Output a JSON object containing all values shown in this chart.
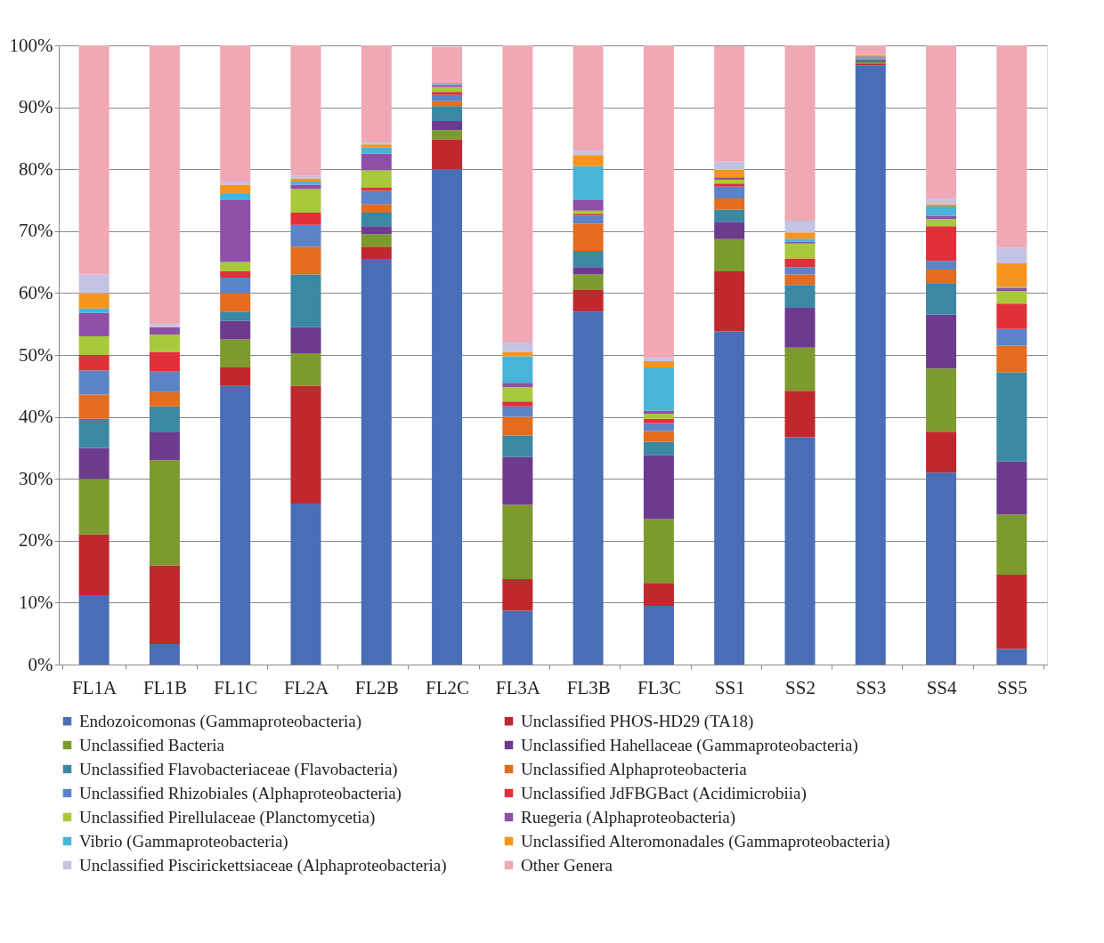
{
  "chart_data": {
    "type": "bar",
    "stacked": true,
    "categories": [
      "FL1A",
      "FL1B",
      "FL1C",
      "FL2A",
      "FL2B",
      "FL2C",
      "FL3A",
      "FL3B",
      "FL3C",
      "SS1",
      "SS2",
      "SS3",
      "SS4",
      "SS5"
    ],
    "ylim": [
      0,
      100
    ],
    "yticks": [
      {
        "value": 0,
        "label": "0%"
      },
      {
        "value": 10,
        "label": "10%"
      },
      {
        "value": 20,
        "label": "20%"
      },
      {
        "value": 30,
        "label": "30%"
      },
      {
        "value": 40,
        "label": "40%"
      },
      {
        "value": 50,
        "label": "50%"
      },
      {
        "value": 60,
        "label": "60%"
      },
      {
        "value": 70,
        "label": "70%"
      },
      {
        "value": 80,
        "label": "80%"
      },
      {
        "value": 90,
        "label": "90%"
      },
      {
        "value": 100,
        "label": "100%"
      }
    ],
    "grid": "y",
    "legend": "bottom",
    "series": [
      {
        "name": "Endozoicomonas (Gammaproteobacteria)",
        "color": "#4a6eb5",
        "values": [
          11.2,
          3.3,
          45,
          26,
          65.5,
          80,
          8.7,
          57,
          9.5,
          53.8,
          36.7,
          96.8,
          31,
          2.5
        ]
      },
      {
        "name": "Unclassified PHOS-HD29 (TA18)",
        "color": "#c0282d",
        "values": [
          9.8,
          12.7,
          3,
          19,
          2,
          4.8,
          5.1,
          3.5,
          3.7,
          9.7,
          7.5,
          0.3,
          6.6,
          12
        ]
      },
      {
        "name": "Unclassified Bacteria",
        "color": "#7d9a2e",
        "values": [
          9,
          17,
          4.5,
          5.3,
          2,
          1.5,
          12,
          2.5,
          10.3,
          5.2,
          7,
          0.2,
          10.2,
          9.7
        ]
      },
      {
        "name": "Unclassified Hahellaceae (Gammaproteobacteria)",
        "color": "#6d3b8e",
        "values": [
          5,
          4.5,
          3,
          4.2,
          1.3,
          1.5,
          7.7,
          1.2,
          10.3,
          2.8,
          6.4,
          0.3,
          8.7,
          8.6
        ]
      },
      {
        "name": "Unclassified Flavobacteriaceae (Flavobacteria)",
        "color": "#3a88a3",
        "values": [
          4.7,
          4.2,
          1.5,
          8.5,
          2.2,
          2.4,
          3.5,
          2.6,
          2.2,
          2,
          3.7,
          0.2,
          5,
          14.4
        ]
      },
      {
        "name": "Unclassified Alphaproteobacteria",
        "color": "#e46c1e",
        "values": [
          3.9,
          2.3,
          3,
          4.5,
          1.3,
          0.8,
          3,
          4.4,
          1.7,
          1.8,
          1.7,
          0.1,
          2.3,
          4.3
        ]
      },
      {
        "name": "Unclassified Rhizobiales (Alphaproteobacteria)",
        "color": "#5b83c8",
        "values": [
          3.9,
          3.3,
          2.5,
          3.5,
          2.2,
          1,
          1.7,
          1.3,
          1.3,
          1.9,
          1.2,
          0.1,
          1.4,
          2.7
        ]
      },
      {
        "name": "Unclassified JdFBGBact (Acidimicrobiia)",
        "color": "#e0303a",
        "values": [
          2.5,
          3.2,
          1,
          2,
          0.5,
          0.5,
          0.8,
          0.3,
          0.7,
          0.5,
          1.4,
          0.1,
          5.6,
          4.1
        ]
      },
      {
        "name": "Unclassified Pirellulaceae (Planctomycetia)",
        "color": "#a8c93a",
        "values": [
          3,
          2.8,
          1.5,
          3.8,
          2.8,
          0.8,
          2.3,
          0.5,
          0.8,
          0.6,
          2.4,
          0.1,
          1.2,
          2
        ]
      },
      {
        "name": "Ruegeria (Alphaproteobacteria)",
        "color": "#8e4fa8",
        "values": [
          3.8,
          1.2,
          10,
          0.7,
          2.7,
          0.3,
          0.7,
          1.7,
          0.5,
          0.4,
          0.3,
          0.1,
          0.5,
          0.5
        ]
      },
      {
        "name": "Vibrio (Gammaproteobacteria)",
        "color": "#4ab3d8",
        "values": [
          0.7,
          0,
          1,
          0.5,
          1,
          0.2,
          4.3,
          5.5,
          7,
          null,
          0.5,
          0,
          1.5,
          0.2
        ]
      },
      {
        "name": "Unclassified Alteromonadales (Gammaproteobacteria)",
        "color": "#f7941e",
        "values": [
          2.5,
          0,
          1.5,
          0.5,
          0.5,
          0.2,
          0.7,
          1.8,
          1,
          1.2,
          1,
          0.2,
          0.3,
          3.8
        ]
      },
      {
        "name": "Unclassified Piscirickettsiaceae (Alphaproteobacteria)",
        "color": "#c3c3e3",
        "values": [
          3,
          0.5,
          0.5,
          0.5,
          0.3,
          null,
          1.5,
          0.7,
          0.5,
          1.3,
          1.9,
          null,
          1,
          2.5
        ]
      },
      {
        "name": "Other Genera",
        "color": "#f0a8b4",
        "values": [
          37,
          45,
          22,
          21,
          15.7,
          5.8,
          48,
          17,
          50.5,
          18.7,
          28.3,
          1.5,
          24.7,
          32.7
        ]
      }
    ]
  }
}
